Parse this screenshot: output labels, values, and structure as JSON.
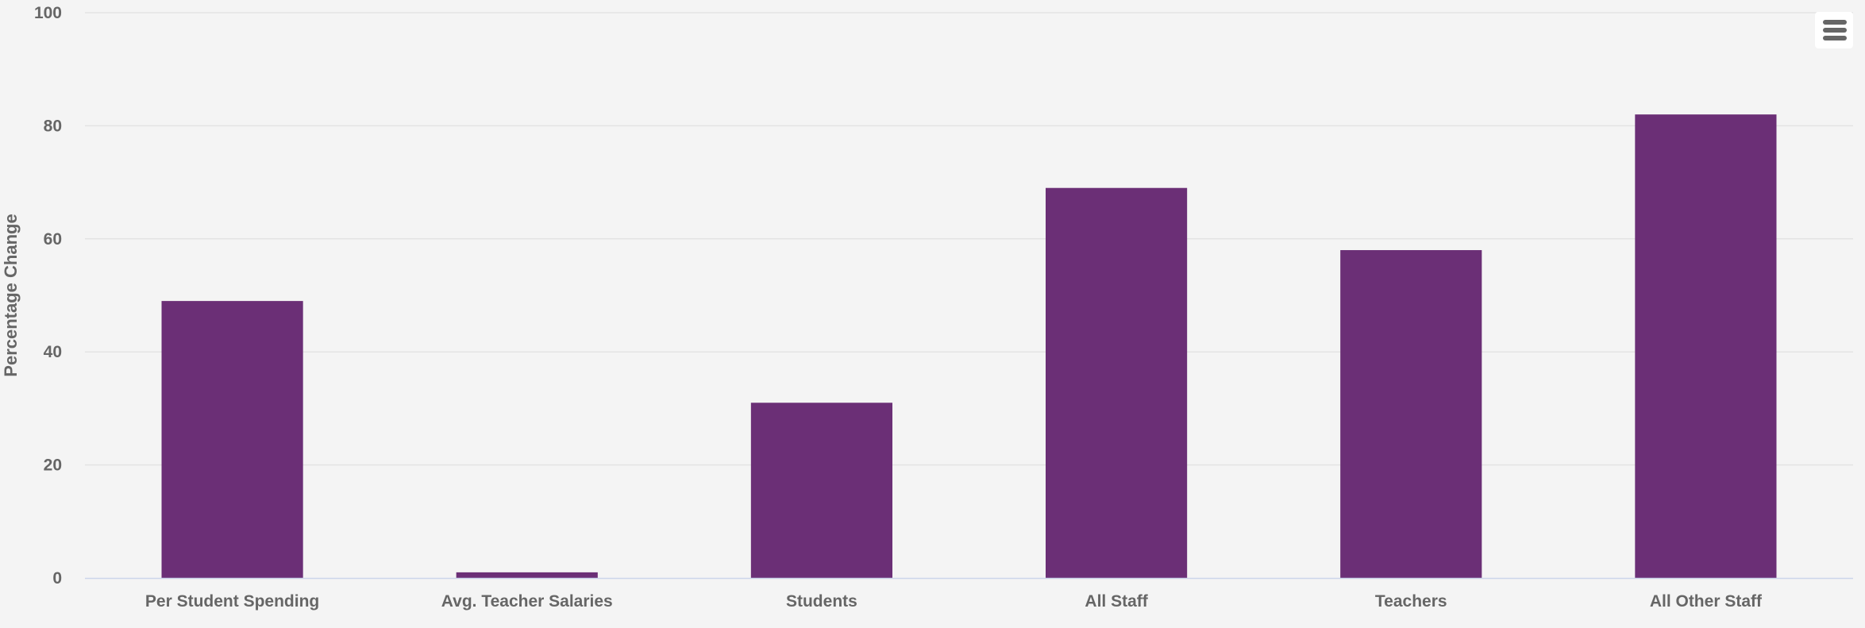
{
  "chart_data": {
    "type": "bar",
    "categories": [
      "Per Student Spending",
      "Avg. Teacher Salaries",
      "Students",
      "All Staff",
      "Teachers",
      "All Other Staff"
    ],
    "values": [
      49,
      1,
      31,
      69,
      58,
      82
    ],
    "title": "",
    "xlabel": "",
    "ylabel": "Percentage Change",
    "ylim": [
      0,
      100
    ],
    "yticks": [
      0,
      20,
      40,
      60,
      80,
      100
    ],
    "grid": true,
    "legend": "none",
    "bar_color": "#6b2f76"
  },
  "colors": {
    "background": "#f4f4f4",
    "gridline": "#e3e3e3",
    "axis_line": "#ccd6eb",
    "text": "#666666",
    "menu_icon": "#666666"
  },
  "menu": {
    "icon": "hamburger-menu-icon"
  }
}
